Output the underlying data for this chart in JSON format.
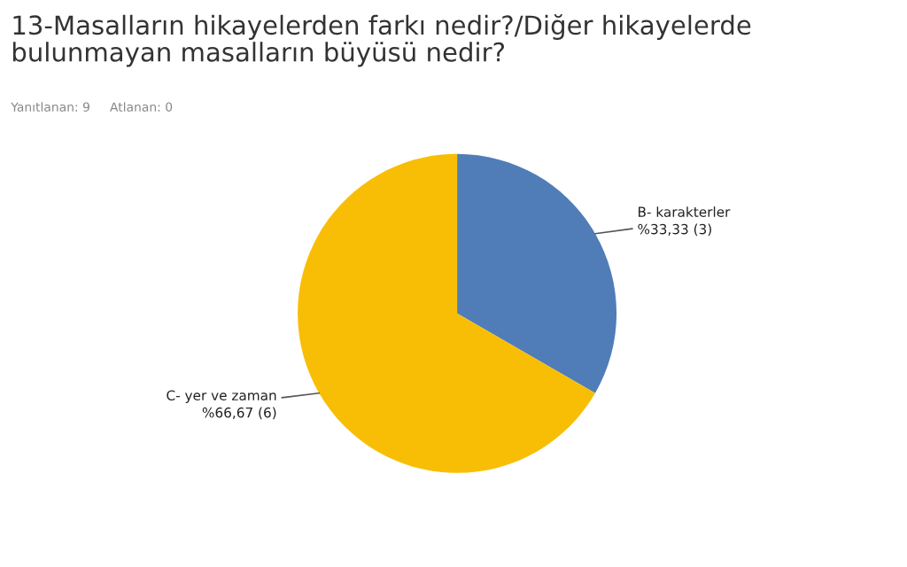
{
  "chart_data": {
    "type": "pie",
    "title": "13-Masalların hikayelerden farkı nedir?/Diğer hikayelerde bulunmayan masalların büyüsü nedir?",
    "subtitle": "Yanıtlanan: 9     Atlanan: 0",
    "categories": [
      "B- karakterler",
      "C- yer ve zaman"
    ],
    "values": [
      33.33,
      66.67
    ],
    "value_labels": [
      "%33,33 (3)",
      "%66,67 (6)"
    ],
    "colors": [
      "#507db7",
      "#f8be05"
    ],
    "legend": false
  }
}
